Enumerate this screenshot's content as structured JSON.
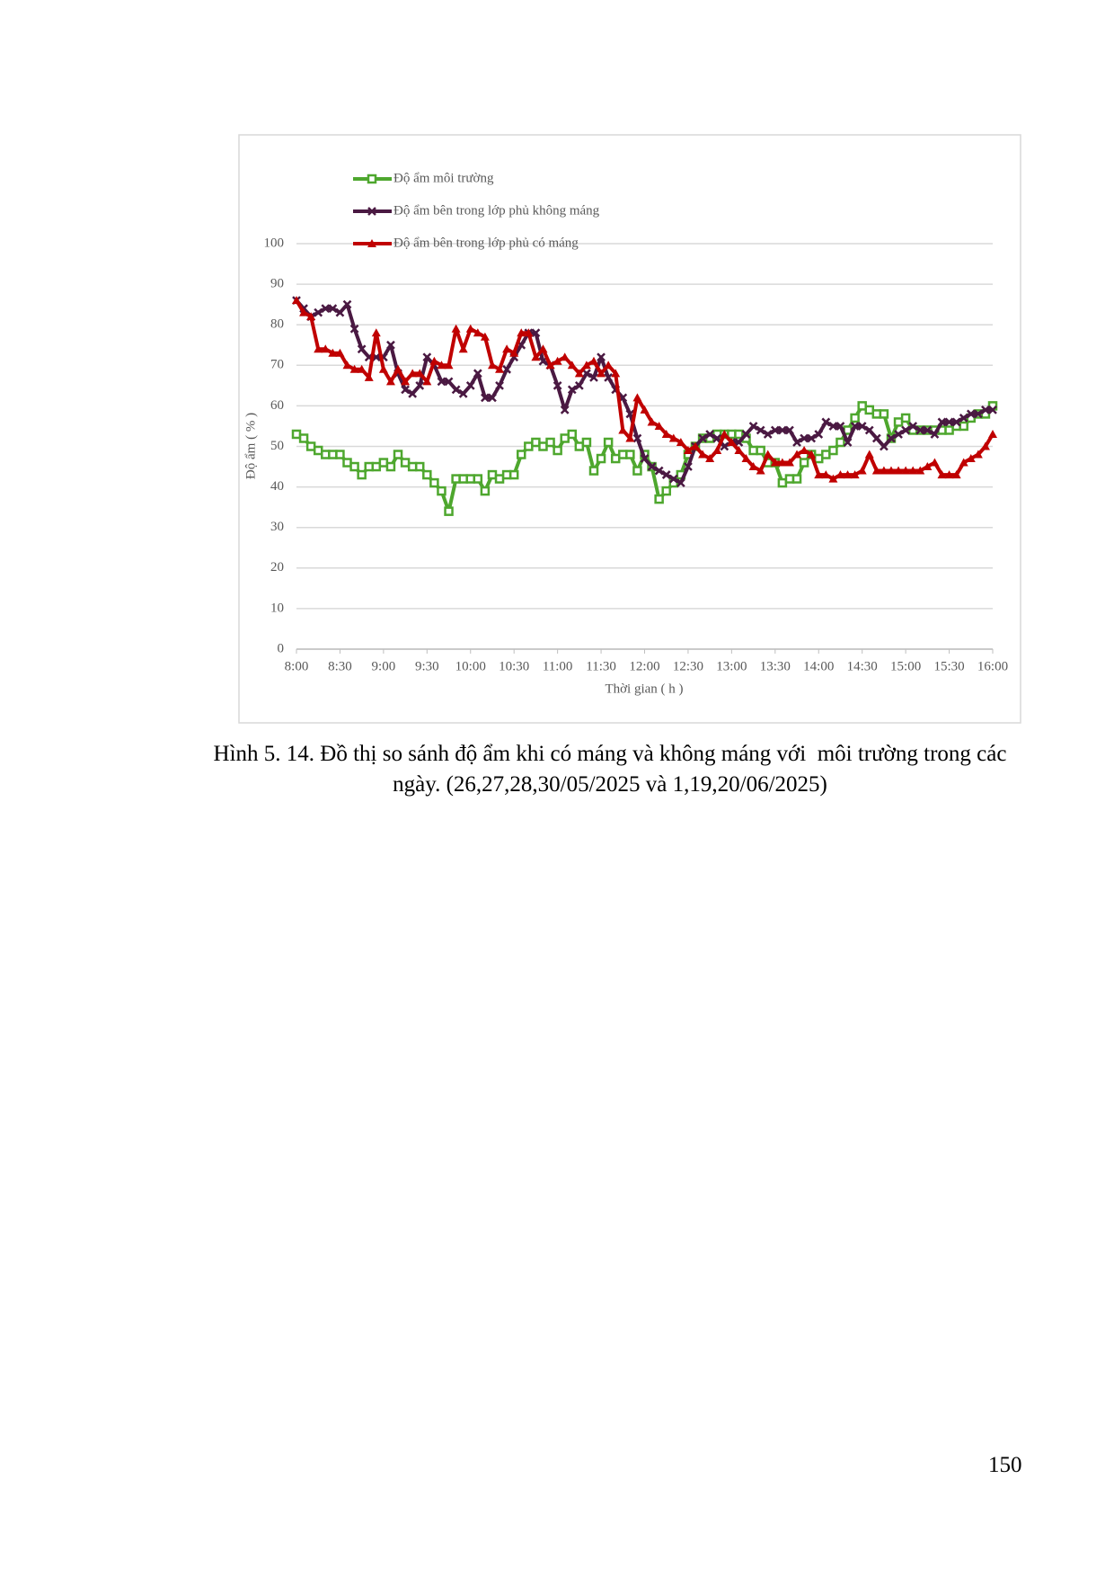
{
  "chart_data": {
    "type": "line",
    "y_label": "Độ ẩm ( % )",
    "x_label": "Thời gian ( h )",
    "categories": [
      "8:00",
      null,
      null,
      null,
      null,
      null,
      "8:30",
      null,
      null,
      null,
      null,
      null,
      "9:00",
      null,
      null,
      null,
      null,
      null,
      "9:30",
      null,
      null,
      null,
      null,
      null,
      "10:00",
      null,
      null,
      null,
      null,
      null,
      "10:30",
      null,
      null,
      null,
      null,
      null,
      "11:00",
      null,
      null,
      null,
      null,
      null,
      "11:30",
      null,
      null,
      null,
      null,
      null,
      "12:00",
      null,
      null,
      null,
      null,
      null,
      "12:30",
      null,
      null,
      null,
      null,
      null,
      "13:00",
      null,
      null,
      null,
      null,
      null,
      "13:30",
      null,
      null,
      null,
      null,
      null,
      "14:00",
      null,
      null,
      null,
      null,
      null,
      "14:30",
      null,
      null,
      null,
      null,
      null,
      "15:00",
      null,
      null,
      null,
      null,
      null,
      "15:30",
      null,
      null,
      null,
      null,
      null,
      "16:00"
    ],
    "ylim": [
      0,
      100
    ],
    "yticks": [
      0,
      10,
      20,
      30,
      40,
      50,
      60,
      70,
      80,
      90,
      100
    ],
    "grid": true,
    "series": [
      {
        "name": "Độ ẩm môi trường",
        "color": "#4ea72e",
        "marker": "square",
        "values": [
          53,
          52,
          50,
          49,
          48,
          48,
          48,
          46,
          45,
          43,
          45,
          45,
          46,
          45,
          48,
          46,
          45,
          45,
          43,
          41,
          39,
          34,
          42,
          42,
          42,
          42,
          39,
          43,
          42,
          43,
          43,
          48,
          50,
          51,
          50,
          51,
          49,
          52,
          53,
          50,
          51,
          44,
          47,
          51,
          47,
          48,
          48,
          44,
          48,
          45,
          37,
          39,
          41,
          43,
          48,
          50,
          52,
          52,
          53,
          53,
          53,
          53,
          52,
          49,
          49,
          46,
          46,
          41,
          42,
          42,
          46,
          48,
          47,
          48,
          49,
          51,
          54,
          57,
          60,
          59,
          58,
          58,
          52,
          56,
          57,
          54,
          54,
          54,
          54,
          54,
          54,
          55,
          55,
          57,
          58,
          58,
          60
        ]
      },
      {
        "name": "Độ ẩm bên trong lớp phủ không máng",
        "color": "#4a1942",
        "marker": "x",
        "values": [
          86,
          84,
          82,
          83,
          84,
          84,
          83,
          85,
          79,
          74,
          72,
          72,
          72,
          75,
          68,
          64,
          63,
          65,
          72,
          70,
          66,
          66,
          64,
          63,
          65,
          68,
          62,
          62,
          65,
          69,
          72,
          75,
          78,
          78,
          71,
          70,
          65,
          59,
          64,
          65,
          68,
          67,
          72,
          67,
          64,
          62,
          58,
          52,
          47,
          45,
          44,
          43,
          42,
          41,
          45,
          50,
          52,
          53,
          52,
          50,
          51,
          51,
          53,
          55,
          54,
          53,
          54,
          54,
          54,
          51,
          52,
          52,
          53,
          56,
          55,
          55,
          51,
          55,
          55,
          54,
          52,
          50,
          52,
          53,
          54,
          55,
          54,
          54,
          53,
          56,
          56,
          56,
          57,
          58,
          58,
          59,
          59
        ]
      },
      {
        "name": "Độ ẩm bên trong lớp phủ có máng",
        "color": "#c00000",
        "marker": "triangle",
        "values": [
          86,
          83,
          82,
          74,
          74,
          73,
          73,
          70,
          69,
          69,
          67,
          78,
          69,
          66,
          69,
          66,
          68,
          68,
          66,
          71,
          70,
          70,
          79,
          74,
          79,
          78,
          77,
          70,
          69,
          74,
          73,
          78,
          78,
          72,
          74,
          70,
          71,
          72,
          70,
          68,
          70,
          71,
          68,
          70,
          68,
          54,
          52,
          62,
          59,
          56,
          55,
          53,
          52,
          51,
          49,
          50,
          48,
          47,
          49,
          53,
          51,
          49,
          47,
          45,
          44,
          48,
          46,
          46,
          46,
          48,
          49,
          48,
          43,
          43,
          42,
          43,
          43,
          43,
          44,
          48,
          44,
          44,
          44,
          44,
          44,
          44,
          44,
          45,
          46,
          43,
          43,
          43,
          46,
          47,
          48,
          50,
          53
        ]
      }
    ]
  },
  "caption": "Hình 5. 14. Đồ thị so sánh độ ẩm khi có máng và không máng với  môi trường trong các ngày. (26,27,28,30/05/2025 và 1,19,20/06/2025)",
  "page_number": "150"
}
